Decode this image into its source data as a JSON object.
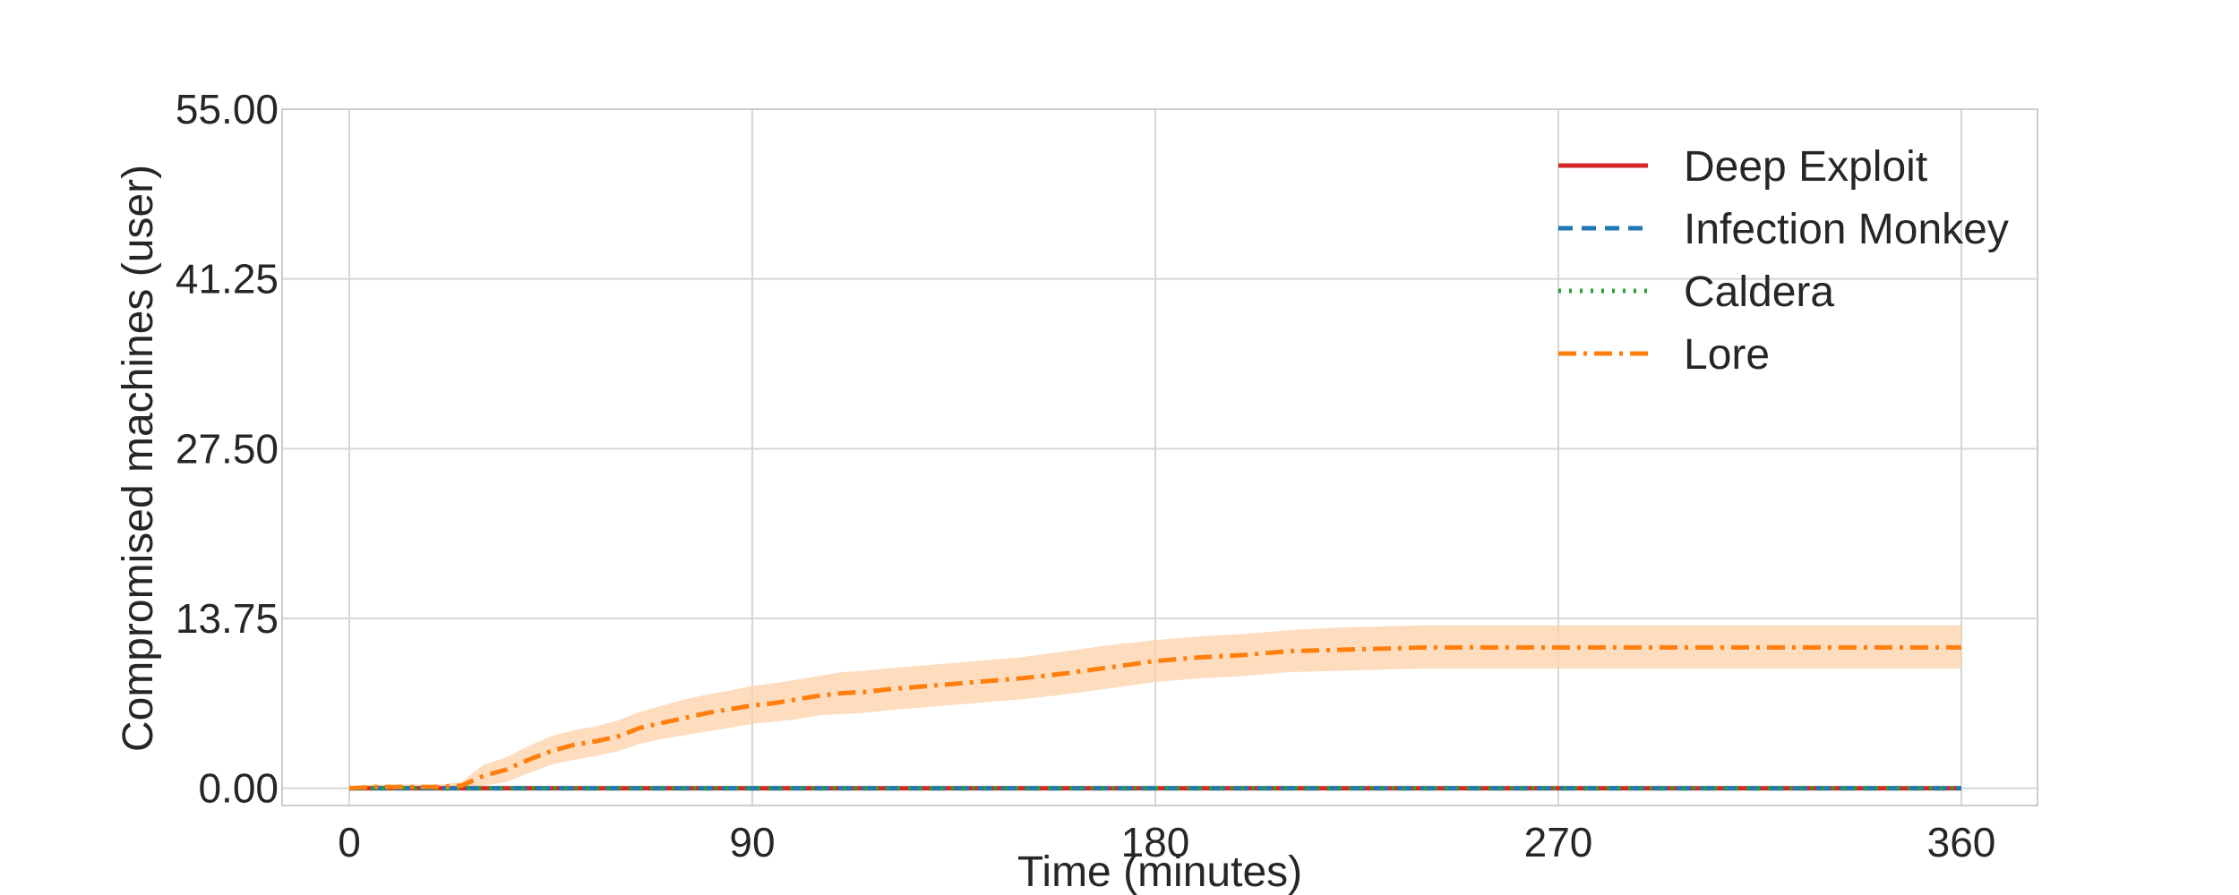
{
  "chart_data": {
    "type": "line",
    "title": "",
    "xlabel": "Time (minutes)",
    "ylabel": "Compromised machines (user)",
    "xlim": [
      -15,
      377
    ],
    "ylim": [
      -1.4,
      55.0
    ],
    "xticks": [
      0,
      90,
      180,
      270,
      360
    ],
    "xtick_labels": [
      "0",
      "90",
      "180",
      "270",
      "360"
    ],
    "yticks": [
      0.0,
      13.75,
      27.5,
      41.25,
      55.0
    ],
    "ytick_labels": [
      "0.00",
      "13.75",
      "27.50",
      "41.25",
      "55.00"
    ],
    "grid": true,
    "legend_position": "top-right",
    "x": [
      0,
      5,
      10,
      15,
      20,
      25,
      30,
      35,
      40,
      45,
      50,
      55,
      60,
      65,
      70,
      75,
      80,
      85,
      90,
      95,
      100,
      105,
      110,
      115,
      120,
      130,
      140,
      150,
      160,
      170,
      180,
      190,
      200,
      210,
      220,
      230,
      240,
      250,
      260,
      270,
      280,
      290,
      300,
      310,
      320,
      330,
      340,
      350,
      360
    ],
    "series": [
      {
        "name": "Deep Exploit",
        "color": "#d62728",
        "dash": "solid",
        "values": [
          0,
          0,
          0,
          0,
          0,
          0,
          0,
          0,
          0,
          0,
          0,
          0,
          0,
          0,
          0,
          0,
          0,
          0,
          0,
          0,
          0,
          0,
          0,
          0,
          0,
          0,
          0,
          0,
          0,
          0,
          0,
          0,
          0,
          0,
          0,
          0,
          0,
          0,
          0,
          0,
          0,
          0,
          0,
          0,
          0,
          0,
          0,
          0,
          0
        ]
      },
      {
        "name": "Infection Monkey",
        "color": "#1f77b4",
        "dash": "dashed",
        "values": [
          0,
          0,
          0,
          0,
          0,
          0,
          0,
          0,
          0,
          0,
          0,
          0,
          0,
          0,
          0,
          0,
          0,
          0,
          0,
          0,
          0,
          0,
          0,
          0,
          0,
          0,
          0,
          0,
          0,
          0,
          0,
          0,
          0,
          0,
          0,
          0,
          0,
          0,
          0,
          0,
          0,
          0,
          0,
          0,
          0,
          0,
          0,
          0,
          0
        ]
      },
      {
        "name": "Caldera",
        "color": "#2ca02c",
        "dash": "dotted",
        "values": [
          0,
          0,
          0,
          0,
          0,
          0,
          0,
          0,
          0,
          0,
          0,
          0,
          0,
          0,
          0,
          0,
          0,
          0,
          0,
          0,
          0,
          0,
          0,
          0,
          0,
          0,
          0,
          0,
          0,
          0,
          0,
          0,
          0,
          0,
          0,
          0,
          0,
          0,
          0,
          0,
          0,
          0,
          0,
          0,
          0,
          0,
          0,
          0,
          0
        ]
      },
      {
        "name": "Lore",
        "color": "#ff7f0e",
        "dash": "dashdot",
        "band_color": "#fdd0a8",
        "values": [
          0,
          0.1,
          0.1,
          0.1,
          0.1,
          0.2,
          1.0,
          1.5,
          2.3,
          3.0,
          3.5,
          3.8,
          4.2,
          4.9,
          5.3,
          5.7,
          6.1,
          6.4,
          6.7,
          6.9,
          7.2,
          7.5,
          7.7,
          7.8,
          8.0,
          8.3,
          8.6,
          8.9,
          9.3,
          9.8,
          10.3,
          10.6,
          10.8,
          11.1,
          11.2,
          11.3,
          11.4,
          11.4,
          11.4,
          11.4,
          11.4,
          11.4,
          11.4,
          11.4,
          11.4,
          11.4,
          11.4,
          11.4,
          11.4
        ],
        "lower": [
          0,
          0,
          0,
          0,
          0,
          0,
          0.2,
          0.5,
          1.2,
          1.9,
          2.3,
          2.6,
          3.0,
          3.6,
          4.0,
          4.3,
          4.6,
          4.9,
          5.2,
          5.4,
          5.6,
          5.9,
          6.0,
          6.1,
          6.3,
          6.6,
          6.9,
          7.2,
          7.6,
          8.1,
          8.6,
          8.9,
          9.1,
          9.4,
          9.5,
          9.6,
          9.7,
          9.7,
          9.7,
          9.7,
          9.7,
          9.7,
          9.7,
          9.7,
          9.7,
          9.7,
          9.7,
          9.7,
          9.7
        ],
        "upper": [
          0,
          0.3,
          0.3,
          0.3,
          0.3,
          0.5,
          1.9,
          2.5,
          3.4,
          4.2,
          4.7,
          5.0,
          5.5,
          6.2,
          6.7,
          7.2,
          7.6,
          7.9,
          8.3,
          8.5,
          8.8,
          9.1,
          9.4,
          9.5,
          9.7,
          10.0,
          10.3,
          10.6,
          11.1,
          11.6,
          12.0,
          12.3,
          12.5,
          12.8,
          13.0,
          13.1,
          13.2,
          13.2,
          13.2,
          13.2,
          13.2,
          13.2,
          13.2,
          13.2,
          13.2,
          13.2,
          13.2,
          13.2,
          13.2
        ]
      }
    ]
  }
}
